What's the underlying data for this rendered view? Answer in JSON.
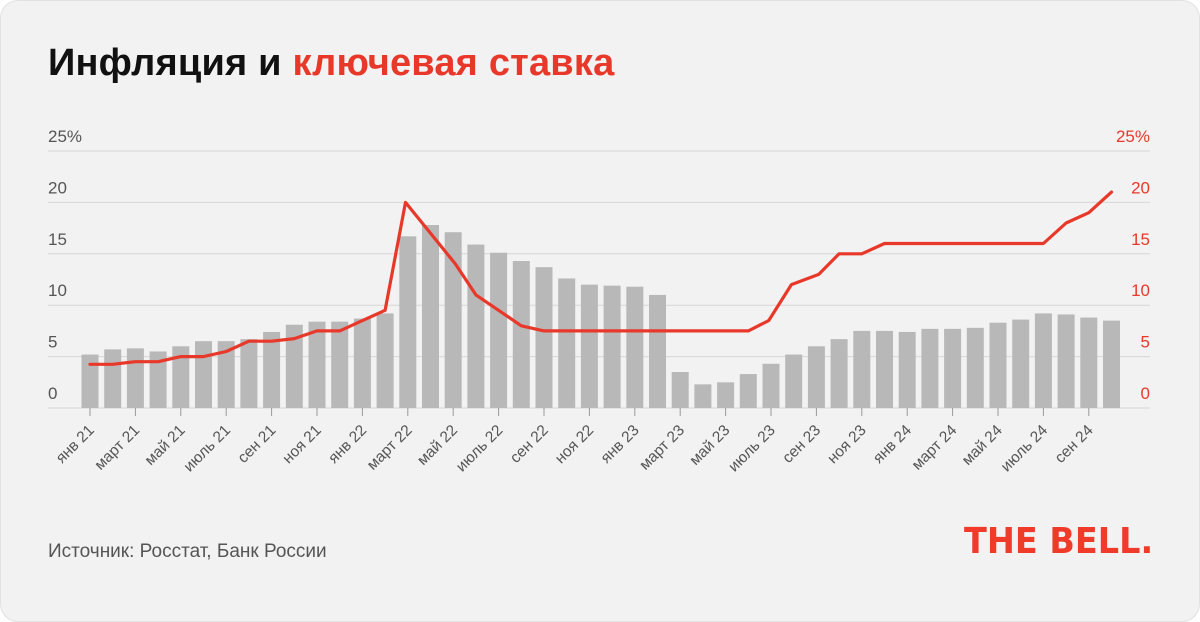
{
  "title": {
    "part1": "Инфляция и",
    "part2": "ключевая ставка"
  },
  "source": "Источник: Росстат, Банк России",
  "logo": "THE BELL.",
  "colors": {
    "background": "#f2f2f2",
    "bars": "#b8b8b8",
    "line": "#e8382a",
    "grid": "#d6d6d6",
    "left_axis_text": "#555555",
    "right_axis_text": "#e8382a"
  },
  "chart_data": {
    "type": "bar+line",
    "title": "Инфляция и ключевая ставка",
    "ylim": [
      0,
      25
    ],
    "y_ticks_left": [
      "0",
      "5",
      "10",
      "15",
      "20",
      "25%"
    ],
    "y_ticks_right": [
      "0",
      "5",
      "10",
      "15",
      "20",
      "25%"
    ],
    "grid": true,
    "x_labels": [
      {
        "index": 0,
        "text": "янв 21"
      },
      {
        "index": 2,
        "text": "март 21"
      },
      {
        "index": 4,
        "text": "май 21"
      },
      {
        "index": 6,
        "text": "июль 21"
      },
      {
        "index": 8,
        "text": "сен 21"
      },
      {
        "index": 10,
        "text": "ноя 21"
      },
      {
        "index": 12,
        "text": "янв 22"
      },
      {
        "index": 14,
        "text": "март 22"
      },
      {
        "index": 16,
        "text": "май 22"
      },
      {
        "index": 18,
        "text": "июль 22"
      },
      {
        "index": 20,
        "text": "сен 22"
      },
      {
        "index": 22,
        "text": "ноя 22"
      },
      {
        "index": 24,
        "text": "янв 23"
      },
      {
        "index": 26,
        "text": "март 23"
      },
      {
        "index": 28,
        "text": "май 23"
      },
      {
        "index": 30,
        "text": "июль 23"
      },
      {
        "index": 32,
        "text": "сен 23"
      },
      {
        "index": 34,
        "text": "ноя 23"
      },
      {
        "index": 36,
        "text": "янв  24"
      },
      {
        "index": 38,
        "text": "март 24"
      },
      {
        "index": 40,
        "text": "май  24"
      },
      {
        "index": 42,
        "text": "июль 24"
      },
      {
        "index": 44,
        "text": "сен 24"
      }
    ],
    "series": [
      {
        "type": "bar",
        "values": [
          5.2,
          5.7,
          5.8,
          5.5,
          6.0,
          6.5,
          6.5,
          6.7,
          7.4,
          8.1,
          8.4,
          8.4,
          8.7,
          9.2,
          16.7,
          17.8,
          17.1,
          15.9,
          15.1,
          14.3,
          13.7,
          12.6,
          12.0,
          11.9,
          11.8,
          11.0,
          3.5,
          2.3,
          2.5,
          3.3,
          4.3,
          5.2,
          6.0,
          6.7,
          7.5,
          7.5,
          7.4,
          7.7,
          7.7,
          7.8,
          8.3,
          8.6,
          9.2,
          9.1,
          8.8,
          8.5
        ]
      },
      {
        "type": "line",
        "x_index": [
          0,
          1,
          2,
          3,
          4,
          5,
          6,
          7,
          8,
          9,
          10,
          11,
          12,
          13,
          13.9,
          15,
          16.1,
          17,
          18,
          19,
          20,
          21,
          22,
          23,
          24,
          25,
          26,
          27,
          28,
          29,
          29.9,
          30.9,
          32.1,
          33,
          34,
          35,
          36,
          37,
          38,
          39,
          40,
          41,
          42,
          43,
          44,
          45
        ],
        "values": [
          4.25,
          4.25,
          4.5,
          4.5,
          5.0,
          5.0,
          5.5,
          6.5,
          6.5,
          6.75,
          7.5,
          7.5,
          8.5,
          9.5,
          20.0,
          17.0,
          14.0,
          11.0,
          9.5,
          8.0,
          7.5,
          7.5,
          7.5,
          7.5,
          7.5,
          7.5,
          7.5,
          7.5,
          7.5,
          7.5,
          8.5,
          12.0,
          13.0,
          15.0,
          15.0,
          16.0,
          16.0,
          16.0,
          16.0,
          16.0,
          16.0,
          16.0,
          16.0,
          18.0,
          19.0,
          21.0
        ]
      }
    ]
  }
}
